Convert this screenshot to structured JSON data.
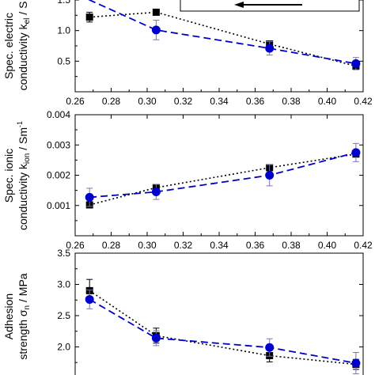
{
  "chart_data": [
    {
      "type": "line",
      "panel": "top",
      "ylabel_lines": [
        "Spec. electric",
        "conductivity k",
        "el",
        " / S"
      ],
      "xlim": [
        0.26,
        0.42
      ],
      "ylim": [
        0.0,
        1.5
      ],
      "xticks": [
        "0.26",
        "0.28",
        "0.30",
        "0.32",
        "0.34",
        "0.36",
        "0.38",
        "0.40",
        "0.42"
      ],
      "yticks": [
        "0.5",
        "1.0",
        "1.5"
      ],
      "series": [
        {
          "marker": "square",
          "color": "#000000",
          "line": "dotted",
          "x": [
            0.268,
            0.305,
            0.368,
            0.416
          ],
          "y": [
            1.22,
            1.3,
            0.78,
            0.42
          ],
          "err": [
            0.08,
            0.03,
            0.05,
            0.04
          ]
        },
        {
          "marker": "circle",
          "color": "#0000cc",
          "line": "dashed",
          "x": [
            0.262,
            0.305,
            0.368,
            0.416
          ],
          "y": [
            1.58,
            1.01,
            0.71,
            0.46
          ],
          "err": [
            0.0,
            0.16,
            0.11,
            0.1
          ]
        }
      ]
    },
    {
      "type": "line",
      "panel": "middle",
      "ylabel_lines": [
        "Spec. ionic",
        "conductivity k",
        "ion",
        " / Sm",
        "-1"
      ],
      "xlim": [
        0.26,
        0.42
      ],
      "ylim": [
        0.0,
        0.004
      ],
      "xticks": [
        "0.26",
        "0.28",
        "0.30",
        "0.32",
        "0.34",
        "0.36",
        "0.38",
        "0.40",
        "0.42"
      ],
      "yticks": [
        "0.001",
        "0.002",
        "0.003",
        "0.004"
      ],
      "series": [
        {
          "marker": "square",
          "color": "#000000",
          "line": "dotted",
          "x": [
            0.268,
            0.305,
            0.368,
            0.416
          ],
          "y": [
            0.00102,
            0.00159,
            0.00225,
            0.0027
          ],
          "err": [
            3e-05,
            5e-05,
            3e-05,
            5e-05
          ]
        },
        {
          "marker": "circle",
          "color": "#0000cc",
          "line": "dashed",
          "x": [
            0.268,
            0.305,
            0.368,
            0.416
          ],
          "y": [
            0.00127,
            0.00145,
            0.002,
            0.00275
          ],
          "err": [
            0.0003,
            0.00025,
            0.00035,
            0.0003
          ]
        }
      ]
    },
    {
      "type": "line",
      "panel": "bottom",
      "ylabel_lines": [
        "Adhesion",
        "strength σ",
        "n",
        " / MPa"
      ],
      "xlim": [
        0.26,
        0.42
      ],
      "ylim": [
        1.55,
        3.5
      ],
      "yticks": [
        "2.0",
        "2.5",
        "3.0",
        "3.5"
      ],
      "series": [
        {
          "marker": "square",
          "color": "#000000",
          "line": "dotted",
          "x": [
            0.268,
            0.305,
            0.368,
            0.416
          ],
          "y": [
            2.9,
            2.18,
            1.86,
            1.72
          ],
          "err": [
            0.18,
            0.12,
            0.1,
            0.08
          ]
        },
        {
          "marker": "circle",
          "color": "#0000cc",
          "line": "dashed",
          "x": [
            0.268,
            0.305,
            0.368,
            0.416
          ],
          "y": [
            2.76,
            2.14,
            1.99,
            1.74
          ],
          "err": [
            0.15,
            0.12,
            0.14,
            0.17
          ]
        }
      ]
    }
  ],
  "colors": {
    "square_series": "#000000",
    "circle_series": "#0000cc"
  }
}
